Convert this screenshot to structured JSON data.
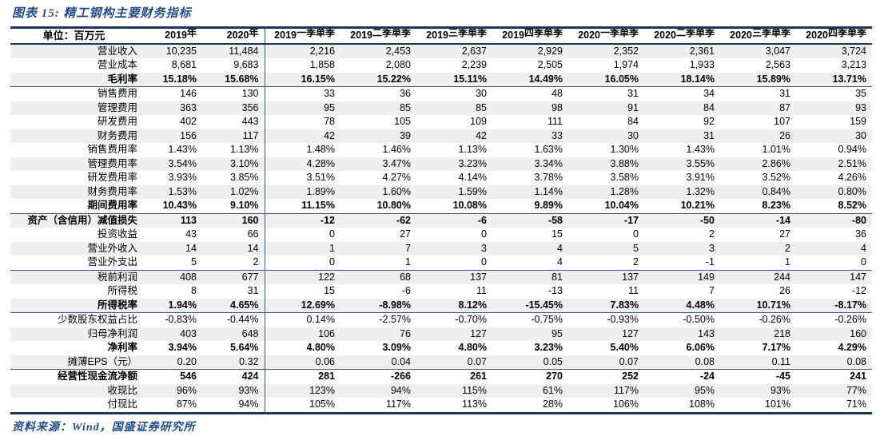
{
  "title": "图表 15: 精工钢构主要财务指标",
  "footer": {
    "source": "资料来源：Wind，国盛证券研究所"
  },
  "accent_colors": {
    "title_blue": "#1f4e8c",
    "thick_rule": "#17375e",
    "thin_rule": "#2e5b9f",
    "stripe_gray": "#efefef"
  },
  "table": {
    "unit_label": "单位：百万元",
    "columns": [
      {
        "prefix": "2019",
        "suffix": "年"
      },
      {
        "prefix": "2020",
        "suffix": "年"
      },
      {
        "prefix": "2019",
        "suffix": "一季单季"
      },
      {
        "prefix": "2019",
        "suffix": "二季单季"
      },
      {
        "prefix": "2019",
        "suffix": "三季单季"
      },
      {
        "prefix": "2019",
        "suffix": "四季单季"
      },
      {
        "prefix": "2020",
        "suffix": "一季单季"
      },
      {
        "prefix": "2020",
        "suffix": "二季单季"
      },
      {
        "prefix": "2020",
        "suffix": "三季单季"
      },
      {
        "prefix": "2020",
        "suffix": "四季单季"
      }
    ],
    "rows": [
      {
        "label": "营业收入",
        "bold": false,
        "indent": false,
        "sep": false,
        "values": [
          "10,235",
          "11,484",
          "2,216",
          "2,453",
          "2,637",
          "2,929",
          "2,352",
          "2,361",
          "3,047",
          "3,724"
        ]
      },
      {
        "label": "营业成本",
        "bold": false,
        "indent": false,
        "sep": false,
        "values": [
          "8,681",
          "9,683",
          "1,858",
          "2,080",
          "2,239",
          "2,505",
          "1,974",
          "1,933",
          "2,563",
          "3,213"
        ]
      },
      {
        "label": "毛利率",
        "bold": true,
        "indent": false,
        "sep": true,
        "values": [
          "15.18%",
          "15.68%",
          "16.15%",
          "15.22%",
          "15.11%",
          "14.49%",
          "16.05%",
          "18.14%",
          "15.89%",
          "13.71%"
        ]
      },
      {
        "label": "销售费用",
        "bold": false,
        "indent": true,
        "sep": false,
        "values": [
          "146",
          "130",
          "33",
          "36",
          "30",
          "48",
          "31",
          "34",
          "31",
          "35"
        ]
      },
      {
        "label": "管理费用",
        "bold": false,
        "indent": true,
        "sep": false,
        "values": [
          "363",
          "356",
          "95",
          "85",
          "85",
          "98",
          "91",
          "84",
          "87",
          "93"
        ]
      },
      {
        "label": "研发费用",
        "bold": false,
        "indent": true,
        "sep": false,
        "values": [
          "402",
          "443",
          "78",
          "105",
          "109",
          "111",
          "84",
          "92",
          "107",
          "159"
        ]
      },
      {
        "label": "财务费用",
        "bold": false,
        "indent": true,
        "sep": false,
        "values": [
          "156",
          "117",
          "42",
          "39",
          "42",
          "33",
          "30",
          "31",
          "26",
          "30"
        ]
      },
      {
        "label": "销售费用率",
        "bold": false,
        "indent": true,
        "sep": false,
        "values": [
          "1.43%",
          "1.13%",
          "1.48%",
          "1.46%",
          "1.13%",
          "1.63%",
          "1.30%",
          "1.43%",
          "1.01%",
          "0.94%"
        ]
      },
      {
        "label": "管理费用率",
        "bold": false,
        "indent": true,
        "sep": false,
        "values": [
          "3.54%",
          "3.10%",
          "4.28%",
          "3.47%",
          "3.23%",
          "3.34%",
          "3.88%",
          "3.55%",
          "2.86%",
          "2.51%"
        ]
      },
      {
        "label": "研发费用率",
        "bold": false,
        "indent": true,
        "sep": false,
        "values": [
          "3.93%",
          "3.85%",
          "3.51%",
          "4.27%",
          "4.14%",
          "3.78%",
          "3.58%",
          "3.91%",
          "3.52%",
          "4.26%"
        ]
      },
      {
        "label": "财务费用率",
        "bold": false,
        "indent": true,
        "sep": false,
        "values": [
          "1.53%",
          "1.02%",
          "1.89%",
          "1.60%",
          "1.59%",
          "1.14%",
          "1.28%",
          "1.32%",
          "0.84%",
          "0.80%"
        ]
      },
      {
        "label": "期间费用率",
        "bold": true,
        "indent": false,
        "sep": true,
        "values": [
          "10.43%",
          "9.10%",
          "11.15%",
          "10.80%",
          "10.08%",
          "9.89%",
          "10.04%",
          "10.21%",
          "8.23%",
          "8.52%"
        ]
      },
      {
        "label": "资产（含信用）减值损失",
        "bold": true,
        "indent": false,
        "sep": false,
        "values": [
          "113",
          "160",
          "-12",
          "-62",
          "-6",
          "-58",
          "-17",
          "-50",
          "-14",
          "-80"
        ]
      },
      {
        "label": "投资收益",
        "bold": false,
        "indent": false,
        "sep": false,
        "values": [
          "43",
          "66",
          "0",
          "27",
          "0",
          "15",
          "0",
          "2",
          "27",
          "36"
        ]
      },
      {
        "label": "营业外收入",
        "bold": false,
        "indent": false,
        "sep": false,
        "values": [
          "14",
          "14",
          "1",
          "7",
          "3",
          "4",
          "5",
          "3",
          "2",
          "4"
        ]
      },
      {
        "label": "营业外支出",
        "bold": false,
        "indent": false,
        "sep": true,
        "values": [
          "5",
          "2",
          "0",
          "1",
          "0",
          "4",
          "2",
          "-1",
          "1",
          "0"
        ]
      },
      {
        "label": "税前利润",
        "bold": false,
        "indent": false,
        "sep": false,
        "values": [
          "408",
          "677",
          "122",
          "68",
          "137",
          "81",
          "137",
          "149",
          "244",
          "147"
        ]
      },
      {
        "label": "所得税",
        "bold": false,
        "indent": false,
        "sep": false,
        "values": [
          "8",
          "31",
          "15",
          "-6",
          "11",
          "-13",
          "11",
          "7",
          "26",
          "-12"
        ]
      },
      {
        "label": "所得税率",
        "bold": true,
        "indent": false,
        "sep": true,
        "values": [
          "1.94%",
          "4.65%",
          "12.69%",
          "-8.98%",
          "8.12%",
          "-15.45%",
          "7.83%",
          "4.48%",
          "10.71%",
          "-8.17%"
        ]
      },
      {
        "label": "少数股东权益占比",
        "bold": false,
        "indent": false,
        "sep": false,
        "values": [
          "-0.83%",
          "-0.44%",
          "0.14%",
          "-2.57%",
          "-0.70%",
          "-0.75%",
          "-0.93%",
          "-0.50%",
          "-0.26%",
          "-0.26%"
        ]
      },
      {
        "label": "归母净利润",
        "bold": false,
        "indent": false,
        "sep": false,
        "values": [
          "403",
          "648",
          "106",
          "76",
          "127",
          "95",
          "127",
          "143",
          "218",
          "160"
        ]
      },
      {
        "label": "净利率",
        "bold": true,
        "indent": false,
        "sep": false,
        "values": [
          "3.94%",
          "5.64%",
          "4.80%",
          "3.09%",
          "4.80%",
          "3.23%",
          "5.40%",
          "6.06%",
          "7.17%",
          "4.29%"
        ]
      },
      {
        "label": "摊薄EPS（元）",
        "bold": false,
        "indent": false,
        "sep": true,
        "values": [
          "0.20",
          "0.32",
          "0.06",
          "0.04",
          "0.07",
          "0.05",
          "0.07",
          "0.08",
          "0.11",
          "0.08"
        ]
      },
      {
        "label": "经营性现金流净额",
        "bold": true,
        "indent": false,
        "sep": false,
        "values": [
          "546",
          "424",
          "281",
          "-266",
          "261",
          "270",
          "252",
          "-24",
          "-45",
          "241"
        ]
      },
      {
        "label": "收现比",
        "bold": false,
        "indent": false,
        "sep": false,
        "values": [
          "96%",
          "93%",
          "123%",
          "94%",
          "115%",
          "61%",
          "117%",
          "95%",
          "93%",
          "77%"
        ]
      },
      {
        "label": "付现比",
        "bold": false,
        "indent": false,
        "sep": false,
        "values": [
          "87%",
          "94%",
          "105%",
          "117%",
          "113%",
          "28%",
          "106%",
          "108%",
          "101%",
          "71%"
        ]
      }
    ]
  }
}
